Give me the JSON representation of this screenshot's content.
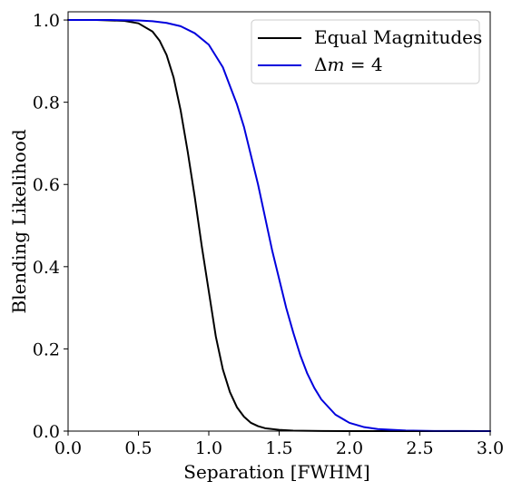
{
  "chart_data": {
    "type": "line",
    "title": "",
    "xlabel": "Separation [FWHM]",
    "ylabel": "Blending Likelihood",
    "xlim": [
      0,
      3
    ],
    "ylim": [
      0,
      1.02
    ],
    "grid": false,
    "legend_position": "top-right",
    "x_ticks": [
      0.0,
      0.5,
      1.0,
      1.5,
      2.0,
      2.5,
      3.0
    ],
    "x_tick_labels": [
      "0.0",
      "0.5",
      "1.0",
      "1.5",
      "2.0",
      "2.5",
      "3.0"
    ],
    "y_ticks": [
      0.0,
      0.2,
      0.4,
      0.6,
      0.8,
      1.0
    ],
    "y_tick_labels": [
      "0.0",
      "0.2",
      "0.4",
      "0.6",
      "0.8",
      "1.0"
    ],
    "series": [
      {
        "name": "Equal Magnitudes",
        "color": "#000000",
        "x": [
          0.0,
          0.2,
          0.4,
          0.5,
          0.6,
          0.65,
          0.7,
          0.75,
          0.8,
          0.85,
          0.9,
          0.95,
          1.0,
          1.05,
          1.1,
          1.15,
          1.2,
          1.25,
          1.3,
          1.35,
          1.4,
          1.5,
          1.6,
          1.8,
          2.0,
          2.5,
          3.0
        ],
        "y": [
          1.0,
          1.0,
          0.998,
          0.992,
          0.972,
          0.95,
          0.915,
          0.86,
          0.78,
          0.68,
          0.57,
          0.45,
          0.34,
          0.23,
          0.15,
          0.095,
          0.058,
          0.035,
          0.02,
          0.012,
          0.007,
          0.003,
          0.0012,
          0.0002,
          0.0,
          0.0,
          0.0
        ]
      },
      {
        "name": "Δm = 4",
        "color": "#0000dd",
        "x": [
          0.0,
          0.3,
          0.5,
          0.6,
          0.7,
          0.8,
          0.9,
          1.0,
          1.1,
          1.2,
          1.25,
          1.3,
          1.35,
          1.4,
          1.45,
          1.5,
          1.55,
          1.6,
          1.65,
          1.7,
          1.75,
          1.8,
          1.9,
          2.0,
          2.1,
          2.2,
          2.4,
          2.6,
          3.0
        ],
        "y": [
          1.0,
          1.0,
          0.999,
          0.997,
          0.993,
          0.985,
          0.968,
          0.94,
          0.885,
          0.795,
          0.74,
          0.67,
          0.6,
          0.52,
          0.44,
          0.37,
          0.3,
          0.24,
          0.185,
          0.14,
          0.105,
          0.077,
          0.04,
          0.02,
          0.01,
          0.005,
          0.0015,
          0.0004,
          0.0
        ]
      }
    ],
    "legend": [
      {
        "label_text": "Equal Magnitudes",
        "color": "#000000"
      },
      {
        "label_prefix": "Δ",
        "label_italic": "m",
        "label_suffix": " = 4",
        "color": "#0000dd"
      }
    ]
  }
}
